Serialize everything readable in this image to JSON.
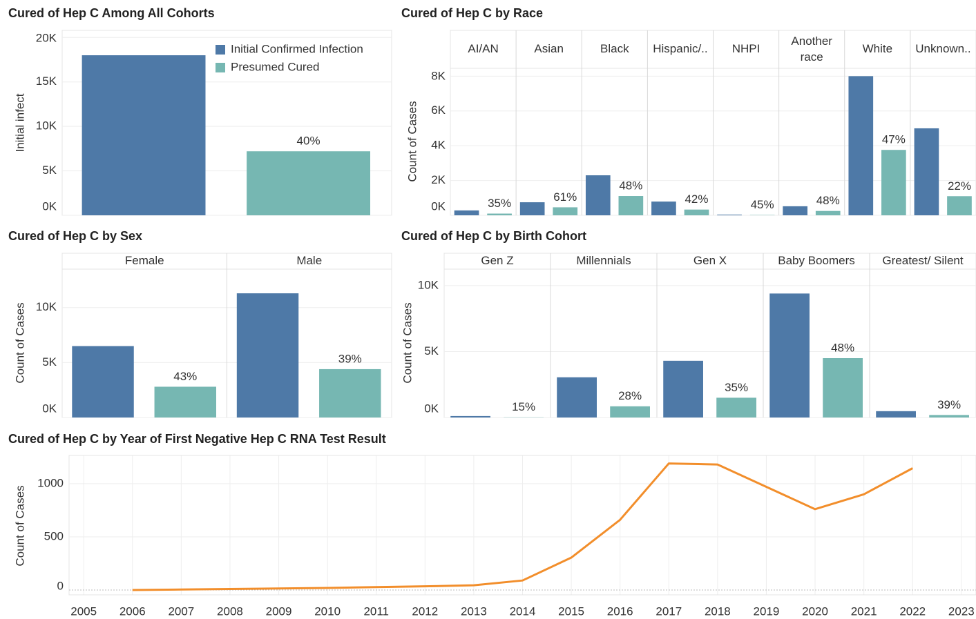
{
  "chart_data": [
    {
      "type": "bar",
      "title": "Cured of Hep C Among All Cohorts",
      "y_label": "Initial infect",
      "legend": "top-right",
      "series": [
        {
          "name": "Initial Confirmed Infection",
          "color": "#4e79a7",
          "values": [
            18000
          ]
        },
        {
          "name": "Presumed Cured",
          "color": "#76b7b2",
          "values": [
            7200
          ],
          "rate_labels": [
            "40%"
          ]
        }
      ],
      "ylim": [
        0,
        20800
      ],
      "yticks": [
        {
          "value": 0,
          "label": "0K"
        },
        {
          "value": 5000,
          "label": "5K"
        },
        {
          "value": 10000,
          "label": "10K"
        },
        {
          "value": 15000,
          "label": "15K"
        },
        {
          "value": 20000,
          "label": "20K"
        }
      ],
      "grid": true
    },
    {
      "type": "bar",
      "title": "Cured of Hep C by Race",
      "y_label": "Count of Cases",
      "categories": [
        "AI/AN",
        "Asian",
        "Black",
        "Hispanic/..",
        "NHPI",
        "Another race",
        "White",
        "Unknown.."
      ],
      "series": [
        {
          "color": "#4e79a7",
          "values": [
            280,
            750,
            2300,
            790,
            40,
            520,
            8000,
            5000
          ]
        },
        {
          "color": "#76b7b2",
          "values": [
            98,
            460,
            1110,
            330,
            18,
            250,
            3760,
            1100
          ],
          "rate_labels": [
            "35%",
            "61%",
            "48%",
            "42%",
            "45%",
            "48%",
            "47%",
            "22%"
          ]
        }
      ],
      "ylim": [
        0,
        8450
      ],
      "yticks": [
        {
          "value": 0,
          "label": "0K"
        },
        {
          "value": 2000,
          "label": "2K"
        },
        {
          "value": 4000,
          "label": "4K"
        },
        {
          "value": 6000,
          "label": "6K"
        },
        {
          "value": 8000,
          "label": "8K"
        }
      ],
      "grid": true
    },
    {
      "type": "bar",
      "title": "Cured of Hep C by Sex",
      "y_label": "Count of Cases",
      "categories": [
        "Female",
        "Male"
      ],
      "series": [
        {
          "color": "#4e79a7",
          "values": [
            6500,
            11300
          ]
        },
        {
          "color": "#76b7b2",
          "values": [
            2800,
            4400
          ],
          "rate_labels": [
            "43%",
            "39%"
          ]
        }
      ],
      "ylim": [
        0,
        13500
      ],
      "yticks": [
        {
          "value": 0,
          "label": "0K"
        },
        {
          "value": 5000,
          "label": "5K"
        },
        {
          "value": 10000,
          "label": "10K"
        }
      ],
      "grid": true
    },
    {
      "type": "bar",
      "title": "Cured of Hep C by Birth Cohort",
      "y_label": "Count of Cases",
      "categories": [
        "Gen Z",
        "Millennials",
        "Gen X",
        "Baby Boomers",
        "Greatest/ Silent"
      ],
      "series": [
        {
          "color": "#4e79a7",
          "values": [
            110,
            3050,
            4300,
            9400,
            480
          ]
        },
        {
          "color": "#76b7b2",
          "values": [
            17,
            850,
            1500,
            4500,
            190
          ],
          "rate_labels": [
            "15%",
            "28%",
            "35%",
            "48%",
            "39%"
          ]
        }
      ],
      "ylim": [
        0,
        11250
      ],
      "yticks": [
        {
          "value": 0,
          "label": "0K"
        },
        {
          "value": 5000,
          "label": "5K"
        },
        {
          "value": 10000,
          "label": "10K"
        }
      ],
      "grid": true
    },
    {
      "type": "line",
      "title": "Cured of Hep C by Year of First Negative Hep C RNA Test Result",
      "y_label": "Count of Cases",
      "x": [
        2006,
        2007,
        2008,
        2009,
        2010,
        2011,
        2012,
        2013,
        2014,
        2015,
        2016,
        2017,
        2018,
        2019,
        2020,
        2021,
        2022
      ],
      "series": [
        {
          "color": "#f28e2b",
          "values": [
            0,
            5,
            10,
            15,
            20,
            28,
            35,
            45,
            90,
            305,
            660,
            1190,
            1180,
            970,
            760,
            900,
            1145
          ]
        }
      ],
      "xlim": [
        2004.7,
        2023.3
      ],
      "xticks": [
        2005,
        2006,
        2007,
        2008,
        2009,
        2010,
        2011,
        2012,
        2013,
        2014,
        2015,
        2016,
        2017,
        2018,
        2019,
        2020,
        2021,
        2022,
        2023
      ],
      "ylim": [
        -45,
        1265
      ],
      "yticks": [
        0,
        500,
        1000
      ],
      "grid": true
    }
  ]
}
